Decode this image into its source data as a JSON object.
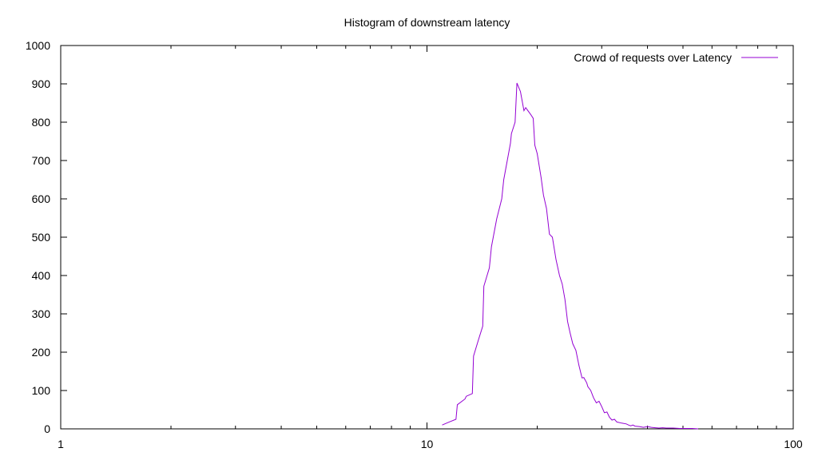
{
  "chart_data": {
    "type": "line",
    "title": "Histogram of downstream latency",
    "xlabel": "",
    "ylabel": "",
    "xscale": "log",
    "xlim": [
      1,
      100
    ],
    "ylim": [
      0,
      1000
    ],
    "xticks": [
      1,
      10,
      100
    ],
    "xtick_labels": [
      "1",
      "10",
      "100"
    ],
    "yticks": [
      0,
      100,
      200,
      300,
      400,
      500,
      600,
      700,
      800,
      900,
      1000
    ],
    "ytick_labels": [
      "0",
      "100",
      "200",
      "300",
      "400",
      "500",
      "600",
      "700",
      "800",
      "900",
      "1000"
    ],
    "grid": false,
    "legend_position": "top-right",
    "series": [
      {
        "name": "Crowd of requests over Latency",
        "color": "#9400d3",
        "x": [
          11.0,
          11.5,
          12.0,
          12.1,
          12.7,
          12.8,
          13.3,
          13.4,
          13.8,
          14.2,
          14.3,
          14.8,
          15.0,
          15.5,
          16.0,
          16.2,
          16.9,
          17.0,
          17.4,
          17.6,
          18.0,
          18.4,
          18.6,
          19.2,
          19.5,
          19.7,
          20.0,
          20.5,
          20.8,
          21.2,
          21.6,
          22.0,
          22.5,
          23.0,
          23.4,
          23.8,
          24.2,
          24.6,
          25.0,
          25.5,
          26.0,
          26.5,
          26.8,
          27.3,
          27.5,
          28.0,
          28.5,
          29.0,
          29.5,
          30.0,
          30.5,
          31.0,
          31.5,
          32.0,
          32.5,
          33.0,
          34.0,
          35.0,
          35.5,
          36.0,
          36.5,
          37.0,
          38.0,
          39.0,
          40.0,
          41.0,
          42.0,
          43.0,
          44.0,
          45.0,
          47.0,
          49.0,
          51.0,
          53.0,
          55.0
        ],
        "y": [
          10,
          18,
          25,
          63,
          78,
          85,
          92,
          190,
          230,
          268,
          372,
          420,
          475,
          548,
          600,
          650,
          745,
          770,
          800,
          902,
          880,
          830,
          838,
          820,
          810,
          740,
          718,
          655,
          610,
          575,
          508,
          500,
          442,
          400,
          378,
          338,
          280,
          250,
          222,
          205,
          165,
          133,
          134,
          120,
          110,
          100,
          81,
          68,
          72,
          58,
          42,
          44,
          30,
          23,
          25,
          18,
          15,
          13,
          10,
          8,
          10,
          7,
          6,
          4,
          6,
          4,
          3,
          2,
          3,
          2,
          2,
          1,
          1,
          1,
          0
        ]
      }
    ]
  }
}
